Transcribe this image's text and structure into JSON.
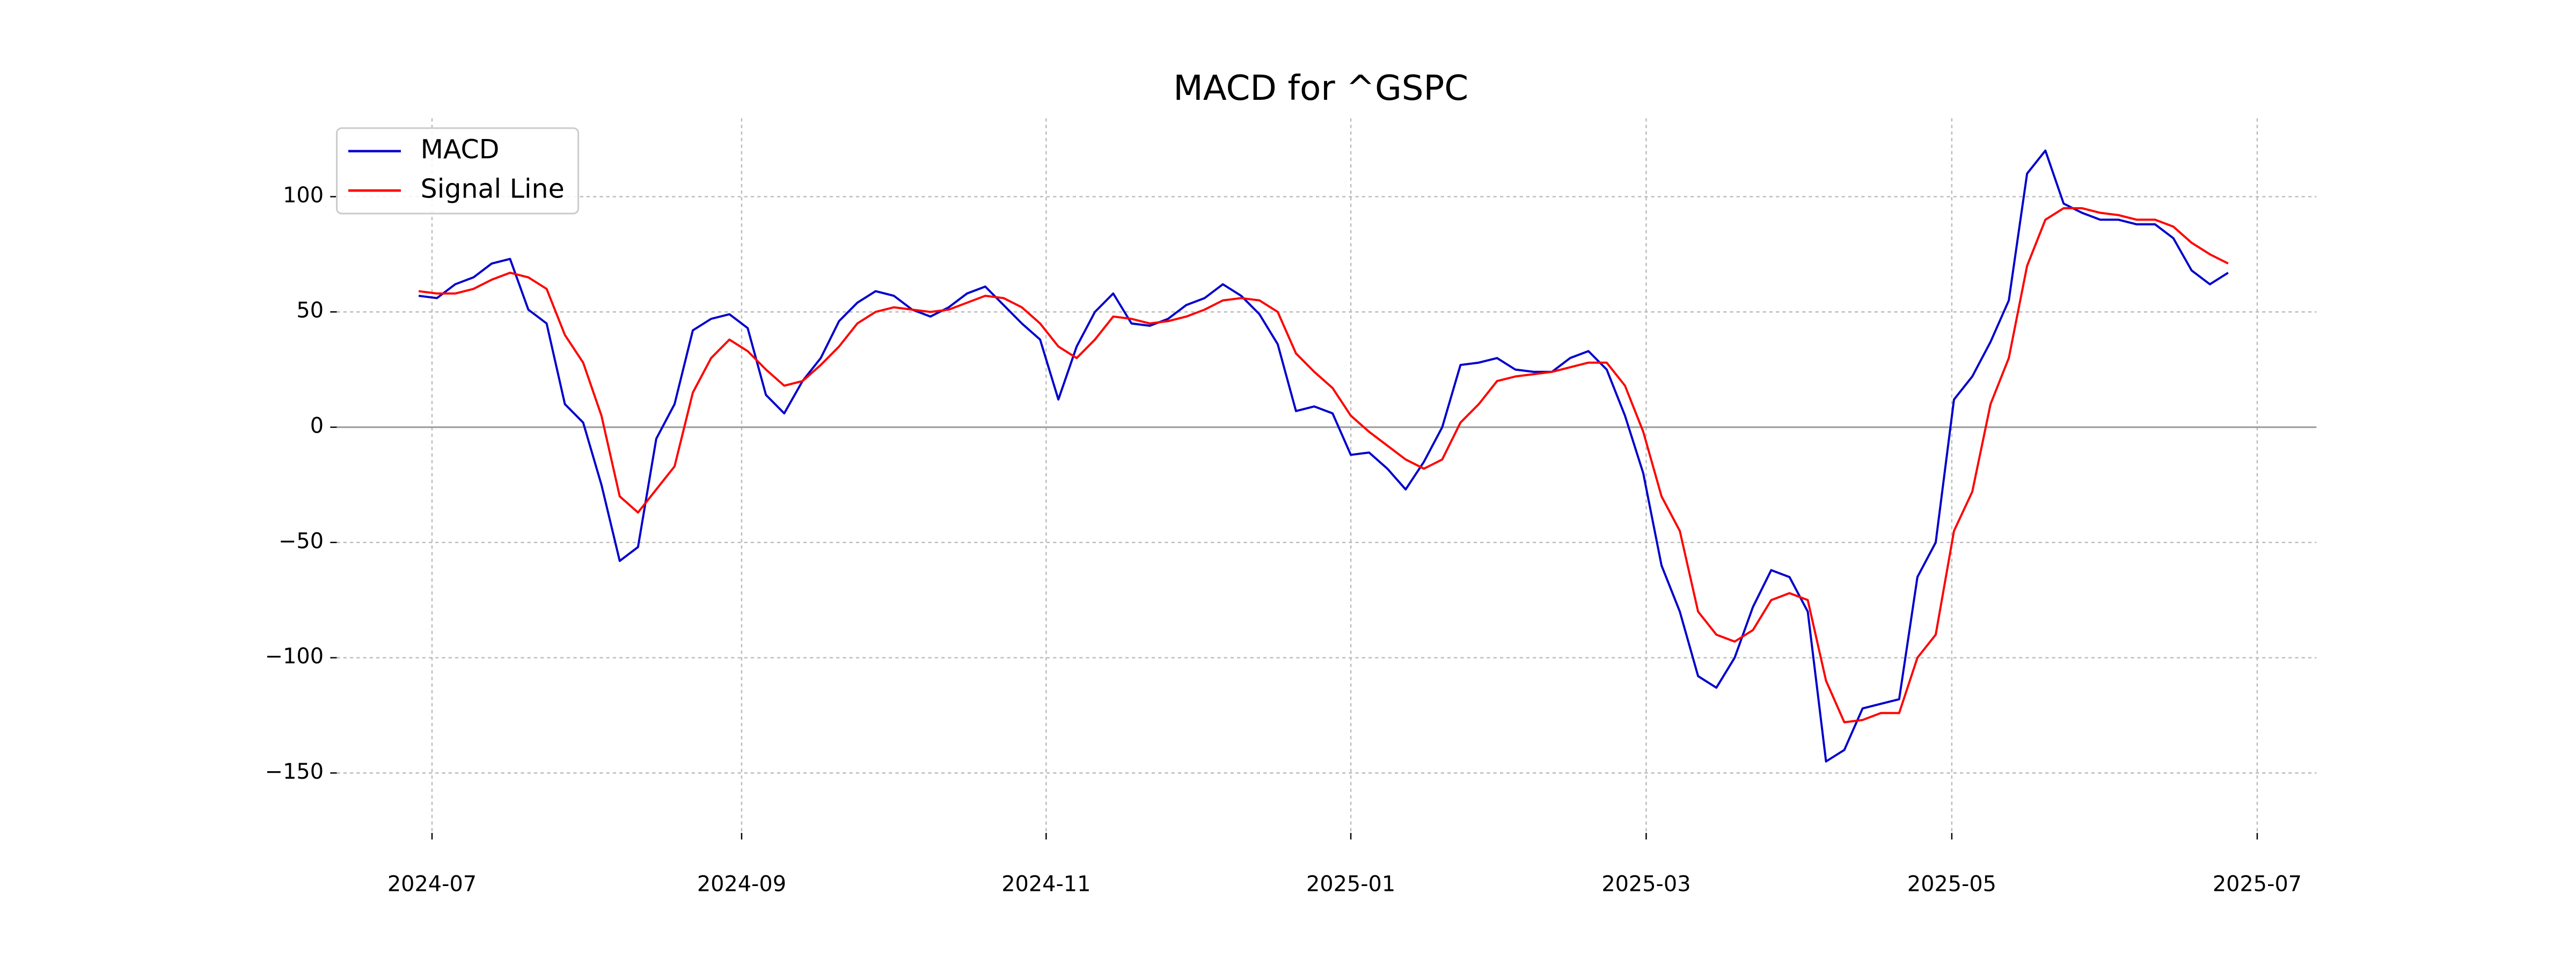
{
  "chart_data": {
    "type": "line",
    "title": "MACD for ^GSPC",
    "x": [
      2024.49,
      2024.5,
      2024.51,
      2024.52,
      2024.53,
      2024.54,
      2024.55,
      2024.56,
      2024.57,
      2024.58,
      2024.59,
      2024.6,
      2024.61,
      2024.62,
      2024.63,
      2024.64,
      2024.65,
      2024.66,
      2024.67,
      2024.68,
      2024.69,
      2024.7,
      2024.71,
      2024.72,
      2024.73,
      2024.74,
      2024.75,
      2024.76,
      2024.77,
      2024.78,
      2024.79,
      2024.8,
      2024.81,
      2024.82,
      2024.83,
      2024.84,
      2024.85,
      2024.86,
      2024.87,
      2024.88,
      2024.89,
      2024.9,
      2024.91,
      2024.92,
      2024.93,
      2024.94,
      2024.95,
      2024.96,
      2024.97,
      2024.98,
      2024.99,
      2025.0,
      2025.01,
      2025.02,
      2025.03,
      2025.04,
      2025.05,
      2025.06,
      2025.07,
      2025.08,
      2025.09,
      2025.1,
      2025.11,
      2025.12,
      2025.13,
      2025.14,
      2025.15,
      2025.16,
      2025.17,
      2025.18,
      2025.19,
      2025.2,
      2025.21,
      2025.22,
      2025.23,
      2025.24,
      2025.25,
      2025.26,
      2025.27,
      2025.28,
      2025.29,
      2025.3,
      2025.31,
      2025.32,
      2025.33,
      2025.34,
      2025.35,
      2025.36,
      2025.37,
      2025.38,
      2025.39,
      2025.4,
      2025.41,
      2025.42,
      2025.43,
      2025.44,
      2025.45,
      2025.46,
      2025.47,
      2025.48
    ],
    "series": [
      {
        "name": "MACD",
        "color": "#0000cc",
        "values": [
          57,
          56,
          62,
          65,
          71,
          73,
          51,
          45,
          10,
          2,
          -25,
          -58,
          -52,
          -5,
          10,
          42,
          47,
          49,
          43,
          14,
          6,
          20,
          30,
          46,
          54,
          59,
          57,
          51,
          48,
          52,
          58,
          61,
          53,
          45,
          38,
          12,
          35,
          50,
          58,
          45,
          44,
          47,
          53,
          56,
          62,
          57,
          49,
          36,
          7,
          9,
          6,
          -12,
          -11,
          -18,
          -27,
          -15,
          0,
          27,
          28,
          30,
          25,
          24,
          24,
          30,
          33,
          25,
          5,
          -20,
          -60,
          -80,
          -108,
          -113,
          -100,
          -78,
          -62,
          -65,
          -80,
          -145,
          -140,
          -122,
          -120,
          -118,
          -65,
          -50,
          12,
          22,
          37,
          55,
          110,
          120,
          97,
          93,
          90,
          90,
          88,
          88,
          82,
          68,
          62,
          67
        ]
      },
      {
        "name": "Signal Line",
        "color": "#ff0000",
        "values": [
          59,
          58,
          58,
          60,
          64,
          67,
          65,
          60,
          40,
          28,
          5,
          -30,
          -37,
          -27,
          -17,
          15,
          30,
          38,
          33,
          25,
          18,
          20,
          27,
          35,
          45,
          50,
          52,
          51,
          50,
          51,
          54,
          57,
          56,
          52,
          45,
          35,
          30,
          38,
          48,
          47,
          45,
          46,
          48,
          51,
          55,
          56,
          55,
          50,
          32,
          24,
          17,
          5,
          -2,
          -8,
          -14,
          -18,
          -14,
          2,
          10,
          20,
          22,
          23,
          24,
          26,
          28,
          28,
          18,
          -2,
          -30,
          -45,
          -80,
          -90,
          -93,
          -88,
          -75,
          -72,
          -75,
          -110,
          -128,
          -127,
          -124,
          -124,
          -100,
          -90,
          -45,
          -28,
          10,
          30,
          70,
          90,
          95,
          95,
          93,
          92,
          90,
          90,
          87,
          80,
          75,
          71
        ]
      }
    ],
    "xlim": [
      2024.4452,
      2025.5283
    ],
    "xticks": [
      {
        "value": 2024.4973,
        "label": "2024-07"
      },
      {
        "value": 2024.6667,
        "label": "2024-09"
      },
      {
        "value": 2024.8333,
        "label": "2024-11"
      },
      {
        "value": 2025.0,
        "label": "2025-01"
      },
      {
        "value": 2025.1616,
        "label": "2025-03"
      },
      {
        "value": 2025.3288,
        "label": "2025-05"
      },
      {
        "value": 2025.4959,
        "label": "2025-07"
      }
    ],
    "ylim": [
      -176,
      134
    ],
    "yticks": [
      {
        "value": -150,
        "label": "−150"
      },
      {
        "value": -100,
        "label": "−100"
      },
      {
        "value": -50,
        "label": "−50"
      },
      0,
      50,
      100
    ],
    "grid": true,
    "legend": "upper left"
  }
}
